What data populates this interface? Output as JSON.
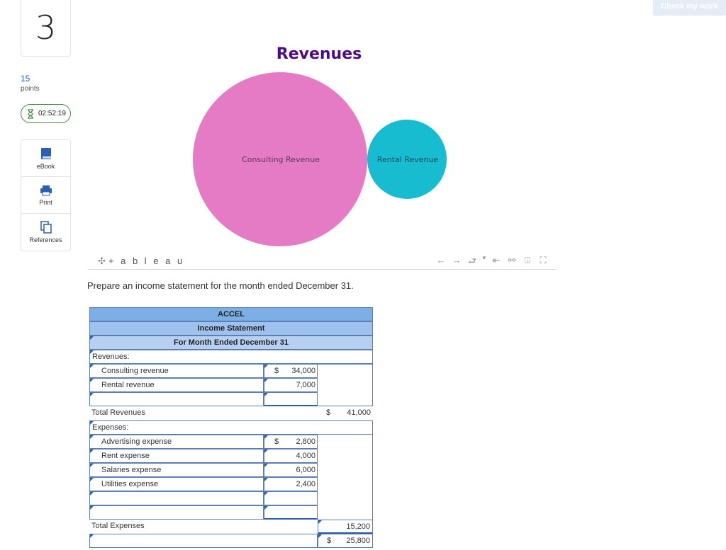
{
  "question": {
    "number": "3",
    "points_value": "15",
    "points_label": "points",
    "timer": "02:52:19"
  },
  "tools": [
    {
      "label": "eBook",
      "icon": "book-icon"
    },
    {
      "label": "Print",
      "icon": "printer-icon"
    },
    {
      "label": "References",
      "icon": "references-icon"
    }
  ],
  "check_button": "Check my work",
  "viz": {
    "title": "Revenues",
    "bubbles": [
      {
        "label": "Consulting Revenue",
        "value": 34000,
        "color": "#e57ac5"
      },
      {
        "label": "Rental Revenue",
        "value": 7000,
        "color": "#17bcd0"
      }
    ],
    "logo": "+ a b l e a u",
    "toolbar_icons": [
      "undo-icon",
      "redo-icon",
      "revert-icon",
      "dropdown-icon",
      "reset-icon",
      "share-icon",
      "download-icon",
      "fullscreen-icon"
    ]
  },
  "prompt": "Prepare an income statement for the month ended December 31.",
  "statement": {
    "company": "ACCEL",
    "title": "Income Statement",
    "period": "For Month Ended December 31",
    "revenues_label": "Revenues:",
    "revenues": [
      {
        "label": "Consulting revenue",
        "dollar": "$",
        "amount": "34,000"
      },
      {
        "label": "Rental revenue",
        "dollar": "",
        "amount": "7,000"
      }
    ],
    "total_revenues_label": "Total Revenues",
    "total_revenues_dollar": "$",
    "total_revenues": "41,000",
    "expenses_label": "Expenses:",
    "expenses": [
      {
        "label": "Advertising expense",
        "dollar": "$",
        "amount": "2,800"
      },
      {
        "label": "Rent expense",
        "dollar": "",
        "amount": "4,000"
      },
      {
        "label": "Salaries expense",
        "dollar": "",
        "amount": "6,000"
      },
      {
        "label": "Utilities expense",
        "dollar": "",
        "amount": "2,400"
      }
    ],
    "total_expenses_label": "Total Expenses",
    "total_expenses": "15,200",
    "net_dollar": "$",
    "net_amount": "25,800"
  }
}
